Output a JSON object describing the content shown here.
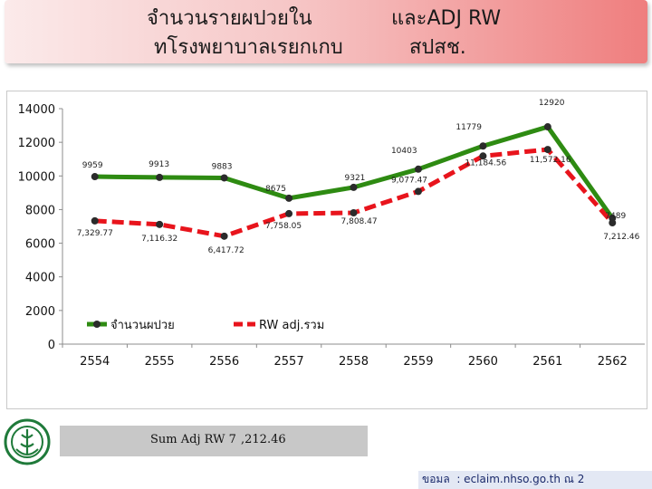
{
  "title": {
    "line1_left": "จำนวนรายผปวยใน",
    "line1_right": "และADJ RW",
    "line2_left": "ทโรงพยาบาลเรยกเกบ",
    "line2_right": "สปสช."
  },
  "summary": {
    "left": "Sum Adj RW 7",
    "right": ",212.46"
  },
  "source": {
    "left": "ขอมล",
    "right": ": eclaim.nhso.go.th  ณ 2"
  },
  "colors": {
    "patients": "#2e8b12",
    "rw": "#e8141c",
    "point": "#2b2b2b"
  },
  "chart_data": {
    "type": "line",
    "categories": [
      "2554",
      "2555",
      "2556",
      "2557",
      "2558",
      "2559",
      "2560",
      "2561",
      "2562"
    ],
    "ylim": [
      0,
      14000
    ],
    "yticks": [
      "0",
      "2000",
      "4000",
      "6000",
      "8000",
      "10000",
      "12000",
      "14000"
    ],
    "grid": false,
    "legend": "inside-lower-left",
    "series": [
      {
        "name": "จำนวนผปวย",
        "values": [
          9959,
          9913,
          9883,
          8675,
          9321,
          10403,
          11779,
          12920,
          7489
        ],
        "labels": [
          "9959",
          "9913",
          "9883",
          "8675",
          "9321",
          "10403",
          "11779",
          "12920",
          "7489"
        ]
      },
      {
        "name": "RW adj.รวม",
        "values": [
          7329.77,
          7116.32,
          6417.72,
          7758.05,
          7808.47,
          9077.47,
          11184.56,
          11572.16,
          7212.46
        ],
        "labels": [
          "7,329.77",
          "7,116.32",
          "6,417.72",
          "7,758.05",
          "7,808.47",
          "9,077.47",
          "11,184.56",
          "11,572.16",
          "7,212.46"
        ]
      }
    ]
  }
}
